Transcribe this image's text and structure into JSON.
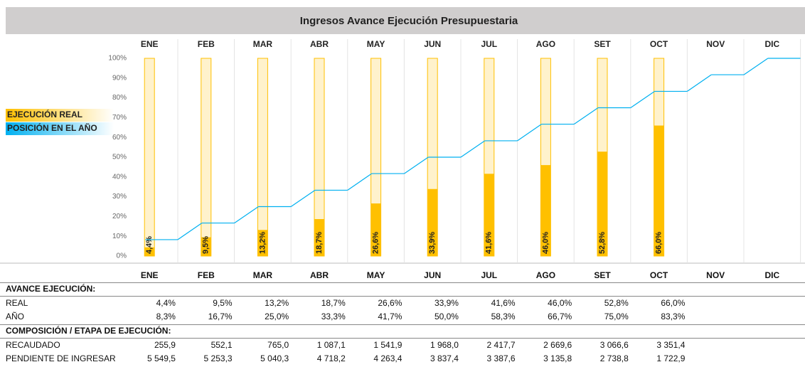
{
  "chart_data": {
    "type": "bar",
    "title": "Ingresos Avance Ejecución Presupuestaria",
    "categories": [
      "ENE",
      "FEB",
      "MAR",
      "ABR",
      "MAY",
      "JUN",
      "JUL",
      "AGO",
      "SET",
      "OCT",
      "NOV",
      "DIC"
    ],
    "ylim": [
      0,
      100
    ],
    "yticks": [
      {
        "value": 0,
        "label": "0%"
      },
      {
        "value": 10,
        "label": "10%"
      },
      {
        "value": 20,
        "label": "20%"
      },
      {
        "value": 30,
        "label": "30%"
      },
      {
        "value": 40,
        "label": "40%"
      },
      {
        "value": 50,
        "label": "50%"
      },
      {
        "value": 60,
        "label": "60%"
      },
      {
        "value": 70,
        "label": "70%"
      },
      {
        "value": 80,
        "label": "80%"
      },
      {
        "value": 90,
        "label": "90%"
      },
      {
        "value": 100,
        "label": "100%"
      }
    ],
    "grid": true,
    "series": [
      {
        "name": "EJECUCIÓN REAL",
        "type": "bar",
        "color": "#ffc000",
        "track_color": "#fff2cc",
        "values": [
          4.4,
          9.5,
          13.2,
          18.7,
          26.6,
          33.9,
          41.6,
          46.0,
          52.8,
          66.0,
          null,
          null
        ],
        "value_labels": [
          "4,4%",
          "9,5%",
          "13,2%",
          "18,7%",
          "26,6%",
          "33,9%",
          "41,6%",
          "46,0%",
          "52,8%",
          "66,0%",
          null,
          null
        ]
      },
      {
        "name": "POSICIÓN EN EL AÑO",
        "type": "step",
        "color": "#00b0f0",
        "values": [
          8.3,
          16.7,
          25.0,
          33.3,
          41.7,
          50.0,
          58.3,
          66.7,
          75.0,
          83.3,
          91.7,
          100
        ]
      }
    ]
  },
  "table": {
    "header": [
      "ENE",
      "FEB",
      "MAR",
      "ABR",
      "MAY",
      "JUN",
      "JUL",
      "AGO",
      "SET",
      "OCT",
      "NOV",
      "DIC"
    ],
    "sections": [
      {
        "title": "AVANCE EJECUCIÓN:",
        "rows": [
          {
            "label": "REAL",
            "cells": [
              "4,4%",
              "9,5%",
              "13,2%",
              "18,7%",
              "26,6%",
              "33,9%",
              "41,6%",
              "46,0%",
              "52,8%",
              "66,0%"
            ]
          },
          {
            "label": "AÑO",
            "cells": [
              "8,3%",
              "16,7%",
              "25,0%",
              "33,3%",
              "41,7%",
              "50,0%",
              "58,3%",
              "66,7%",
              "75,0%",
              "83,3%"
            ]
          }
        ]
      },
      {
        "title": "COMPOSICIÓN / ETAPA DE EJECUCIÓN:",
        "rows": [
          {
            "label": "RECAUDADO",
            "cells": [
              "255,9",
              "552,1",
              "765,0",
              "1 087,1",
              "1 541,9",
              "1 968,0",
              "2 417,7",
              "2 669,6",
              "3 066,6",
              "3 351,4"
            ]
          },
          {
            "label": "PENDIENTE DE INGRESAR",
            "cells": [
              "5 549,5",
              "5 253,3",
              "5 040,3",
              "4 718,2",
              "4 263,4",
              "3 837,4",
              "3 387,6",
              "3 135,8",
              "2 738,8",
              "1 722,9"
            ]
          }
        ]
      }
    ]
  }
}
